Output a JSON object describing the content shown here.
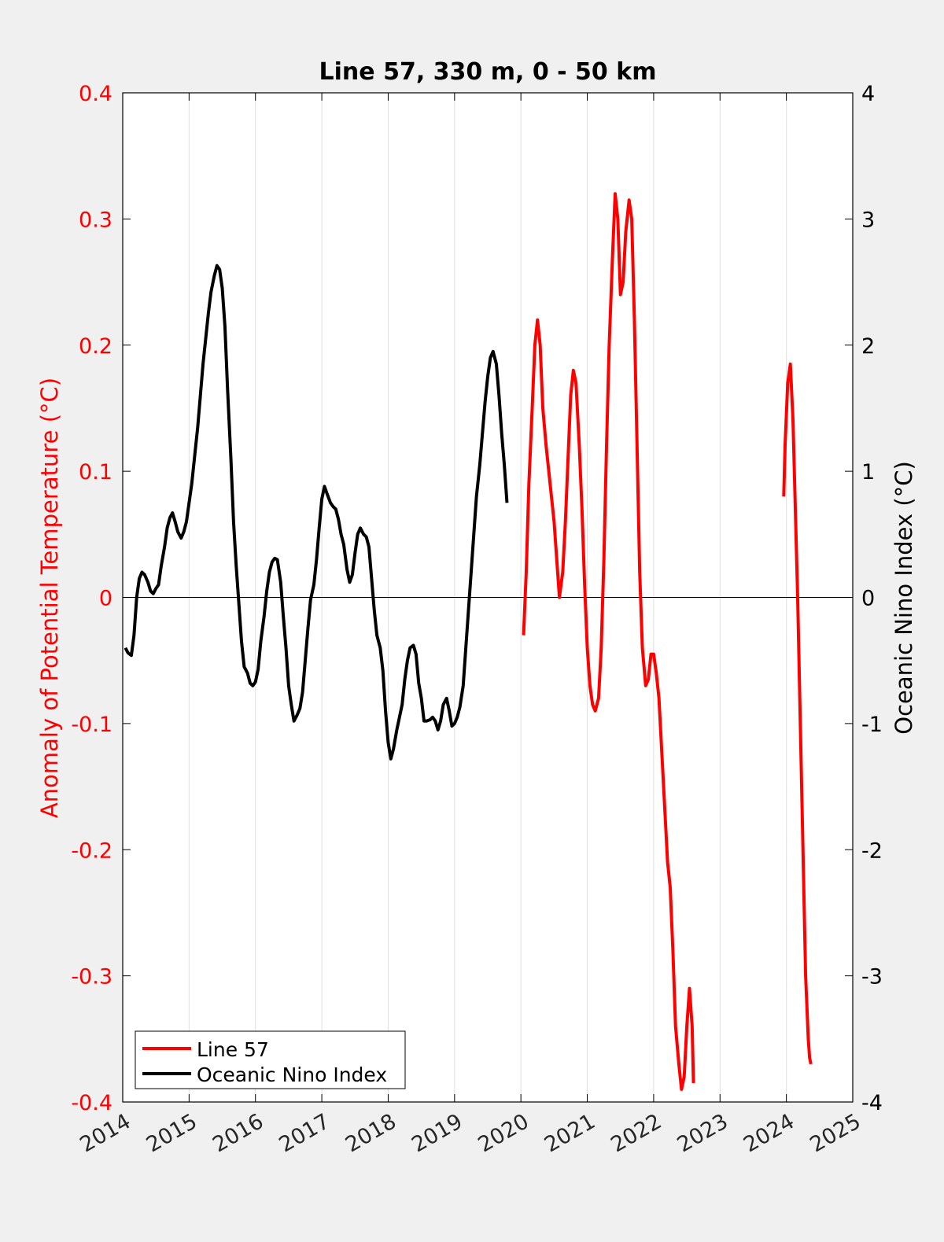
{
  "chart_data": {
    "type": "line",
    "title": "Line 57, 330 m, 0 - 50 km",
    "xlabel": "",
    "ylabel_left": "Anomaly of Potential Temperature (°C)",
    "ylabel_right": "Oceanic Nino Index (°C)",
    "xlim": [
      2014,
      2025
    ],
    "ylim_left": [
      -0.4,
      0.4
    ],
    "ylim_right": [
      -4,
      4
    ],
    "x_ticks": [
      "2014",
      "2015",
      "2016",
      "2017",
      "2018",
      "2019",
      "2020",
      "2021",
      "2022",
      "2023",
      "2024",
      "2025"
    ],
    "y_ticks_left": [
      "-0.4",
      "-0.3",
      "-0.2",
      "-0.1",
      "0",
      "0.1",
      "0.2",
      "0.3",
      "0.4"
    ],
    "y_ticks_right": [
      "-4",
      "-3",
      "-2",
      "-1",
      "0",
      "1",
      "2",
      "3",
      "4"
    ],
    "grid": "vertical",
    "zero_line": true,
    "legend_position": "bottom-left",
    "colors": {
      "left_axis": "#ff0000",
      "right_axis": "#000000",
      "line57": "#ff0000",
      "oni": "#000000",
      "plot_bg": "#ffffff",
      "figure_bg": "#f0f0f0",
      "grid": "#dfdfdf"
    },
    "series": [
      {
        "name": "Line 57",
        "axis": "left",
        "segments": [
          [
            [
              2020.04,
              -0.03
            ],
            [
              2020.08,
              0.02
            ],
            [
              2020.12,
              0.09
            ],
            [
              2020.17,
              0.15
            ],
            [
              2020.21,
              0.2
            ],
            [
              2020.25,
              0.22
            ],
            [
              2020.29,
              0.2
            ],
            [
              2020.33,
              0.15
            ],
            [
              2020.38,
              0.12
            ],
            [
              2020.42,
              0.1
            ],
            [
              2020.46,
              0.08
            ],
            [
              2020.5,
              0.06
            ],
            [
              2020.54,
              0.03
            ],
            [
              2020.58,
              0.0
            ],
            [
              2020.63,
              0.02
            ],
            [
              2020.67,
              0.06
            ],
            [
              2020.71,
              0.11
            ],
            [
              2020.75,
              0.16
            ],
            [
              2020.79,
              0.18
            ],
            [
              2020.83,
              0.17
            ],
            [
              2020.88,
              0.12
            ],
            [
              2020.92,
              0.07
            ],
            [
              2020.96,
              0.01
            ],
            [
              2021.0,
              -0.04
            ],
            [
              2021.04,
              -0.07
            ],
            [
              2021.08,
              -0.085
            ],
            [
              2021.12,
              -0.09
            ],
            [
              2021.17,
              -0.08
            ],
            [
              2021.21,
              -0.04
            ],
            [
              2021.25,
              0.03
            ],
            [
              2021.29,
              0.12
            ],
            [
              2021.33,
              0.2
            ],
            [
              2021.38,
              0.27
            ],
            [
              2021.42,
              0.32
            ],
            [
              2021.46,
              0.3
            ],
            [
              2021.5,
              0.24
            ],
            [
              2021.54,
              0.25
            ],
            [
              2021.58,
              0.29
            ],
            [
              2021.63,
              0.315
            ],
            [
              2021.67,
              0.3
            ],
            [
              2021.71,
              0.22
            ],
            [
              2021.75,
              0.12
            ],
            [
              2021.79,
              0.02
            ],
            [
              2021.83,
              -0.04
            ],
            [
              2021.88,
              -0.07
            ],
            [
              2021.92,
              -0.065
            ],
            [
              2021.96,
              -0.045
            ],
            [
              2022.0,
              -0.045
            ],
            [
              2022.04,
              -0.06
            ],
            [
              2022.08,
              -0.08
            ],
            [
              2022.12,
              -0.12
            ],
            [
              2022.17,
              -0.17
            ],
            [
              2022.21,
              -0.21
            ],
            [
              2022.25,
              -0.23
            ],
            [
              2022.29,
              -0.28
            ],
            [
              2022.33,
              -0.34
            ],
            [
              2022.38,
              -0.37
            ],
            [
              2022.42,
              -0.39
            ],
            [
              2022.46,
              -0.38
            ],
            [
              2022.5,
              -0.34
            ],
            [
              2022.54,
              -0.31
            ],
            [
              2022.58,
              -0.34
            ],
            [
              2022.6,
              -0.385
            ]
          ],
          [
            [
              2023.96,
              0.08
            ],
            [
              2023.98,
              0.12
            ],
            [
              2024.02,
              0.17
            ],
            [
              2024.06,
              0.185
            ],
            [
              2024.1,
              0.14
            ],
            [
              2024.13,
              0.08
            ],
            [
              2024.17,
              0.0
            ],
            [
              2024.21,
              -0.1
            ],
            [
              2024.25,
              -0.2
            ],
            [
              2024.29,
              -0.3
            ],
            [
              2024.33,
              -0.35
            ],
            [
              2024.35,
              -0.365
            ],
            [
              2024.37,
              -0.37
            ]
          ]
        ]
      },
      {
        "name": "Oceanic Nino Index",
        "axis": "right",
        "segments": [
          [
            [
              2014.04,
              -0.4
            ],
            [
              2014.08,
              -0.44
            ],
            [
              2014.13,
              -0.46
            ],
            [
              2014.17,
              -0.3
            ],
            [
              2014.21,
              0.0
            ],
            [
              2014.25,
              0.15
            ],
            [
              2014.29,
              0.2
            ],
            [
              2014.33,
              0.18
            ],
            [
              2014.38,
              0.12
            ],
            [
              2014.42,
              0.05
            ],
            [
              2014.46,
              0.03
            ],
            [
              2014.5,
              0.07
            ],
            [
              2014.54,
              0.1
            ],
            [
              2014.58,
              0.25
            ],
            [
              2014.63,
              0.4
            ],
            [
              2014.67,
              0.55
            ],
            [
              2014.71,
              0.63
            ],
            [
              2014.75,
              0.67
            ],
            [
              2014.79,
              0.6
            ],
            [
              2014.83,
              0.52
            ],
            [
              2014.88,
              0.47
            ],
            [
              2014.92,
              0.52
            ],
            [
              2014.96,
              0.6
            ],
            [
              2015.0,
              0.75
            ],
            [
              2015.04,
              0.9
            ],
            [
              2015.08,
              1.1
            ],
            [
              2015.13,
              1.35
            ],
            [
              2015.17,
              1.6
            ],
            [
              2015.21,
              1.85
            ],
            [
              2015.25,
              2.05
            ],
            [
              2015.29,
              2.25
            ],
            [
              2015.33,
              2.42
            ],
            [
              2015.38,
              2.55
            ],
            [
              2015.42,
              2.63
            ],
            [
              2015.46,
              2.6
            ],
            [
              2015.5,
              2.45
            ],
            [
              2015.54,
              2.15
            ],
            [
              2015.58,
              1.65
            ],
            [
              2015.63,
              1.1
            ],
            [
              2015.67,
              0.6
            ],
            [
              2015.71,
              0.25
            ],
            [
              2015.75,
              -0.05
            ],
            [
              2015.79,
              -0.35
            ],
            [
              2015.83,
              -0.55
            ],
            [
              2015.88,
              -0.6
            ],
            [
              2015.92,
              -0.68
            ],
            [
              2015.96,
              -0.7
            ],
            [
              2016.0,
              -0.67
            ],
            [
              2016.04,
              -0.57
            ],
            [
              2016.08,
              -0.35
            ],
            [
              2016.13,
              -0.15
            ],
            [
              2016.17,
              0.05
            ],
            [
              2016.21,
              0.2
            ],
            [
              2016.25,
              0.28
            ],
            [
              2016.29,
              0.31
            ],
            [
              2016.33,
              0.3
            ],
            [
              2016.38,
              0.12
            ],
            [
              2016.42,
              -0.15
            ],
            [
              2016.46,
              -0.4
            ],
            [
              2016.5,
              -0.7
            ],
            [
              2016.54,
              -0.85
            ],
            [
              2016.58,
              -0.98
            ],
            [
              2016.63,
              -0.93
            ],
            [
              2016.67,
              -0.88
            ],
            [
              2016.71,
              -0.75
            ],
            [
              2016.75,
              -0.5
            ],
            [
              2016.79,
              -0.25
            ],
            [
              2016.83,
              -0.02
            ],
            [
              2016.88,
              0.1
            ],
            [
              2016.92,
              0.3
            ],
            [
              2016.96,
              0.55
            ],
            [
              2017.0,
              0.78
            ],
            [
              2017.04,
              0.88
            ],
            [
              2017.08,
              0.82
            ],
            [
              2017.13,
              0.75
            ],
            [
              2017.17,
              0.72
            ],
            [
              2017.21,
              0.7
            ],
            [
              2017.25,
              0.62
            ],
            [
              2017.29,
              0.5
            ],
            [
              2017.33,
              0.42
            ],
            [
              2017.38,
              0.22
            ],
            [
              2017.42,
              0.12
            ],
            [
              2017.46,
              0.18
            ],
            [
              2017.5,
              0.35
            ],
            [
              2017.54,
              0.5
            ],
            [
              2017.58,
              0.55
            ],
            [
              2017.63,
              0.5
            ],
            [
              2017.67,
              0.48
            ],
            [
              2017.71,
              0.4
            ],
            [
              2017.75,
              0.15
            ],
            [
              2017.79,
              -0.1
            ],
            [
              2017.83,
              -0.3
            ],
            [
              2017.88,
              -0.4
            ],
            [
              2017.92,
              -0.58
            ],
            [
              2017.96,
              -0.9
            ],
            [
              2018.0,
              -1.15
            ],
            [
              2018.04,
              -1.28
            ],
            [
              2018.08,
              -1.2
            ],
            [
              2018.13,
              -1.05
            ],
            [
              2018.17,
              -0.95
            ],
            [
              2018.21,
              -0.85
            ],
            [
              2018.25,
              -0.65
            ],
            [
              2018.29,
              -0.5
            ],
            [
              2018.33,
              -0.4
            ],
            [
              2018.38,
              -0.38
            ],
            [
              2018.42,
              -0.45
            ],
            [
              2018.46,
              -0.68
            ],
            [
              2018.5,
              -0.8
            ],
            [
              2018.54,
              -0.98
            ],
            [
              2018.58,
              -0.98
            ],
            [
              2018.63,
              -0.97
            ],
            [
              2018.67,
              -0.95
            ],
            [
              2018.71,
              -0.98
            ],
            [
              2018.75,
              -1.05
            ],
            [
              2018.79,
              -0.98
            ],
            [
              2018.83,
              -0.85
            ],
            [
              2018.88,
              -0.8
            ],
            [
              2018.92,
              -0.9
            ],
            [
              2018.96,
              -1.02
            ],
            [
              2019.0,
              -1.0
            ],
            [
              2019.04,
              -0.95
            ],
            [
              2019.08,
              -0.87
            ],
            [
              2019.13,
              -0.7
            ],
            [
              2019.17,
              -0.4
            ],
            [
              2019.21,
              -0.1
            ],
            [
              2019.25,
              0.2
            ],
            [
              2019.29,
              0.5
            ],
            [
              2019.33,
              0.8
            ],
            [
              2019.38,
              1.05
            ],
            [
              2019.42,
              1.3
            ],
            [
              2019.46,
              1.55
            ],
            [
              2019.5,
              1.75
            ],
            [
              2019.54,
              1.9
            ],
            [
              2019.58,
              1.95
            ],
            [
              2019.63,
              1.85
            ],
            [
              2019.67,
              1.6
            ],
            [
              2019.71,
              1.3
            ],
            [
              2019.75,
              1.05
            ],
            [
              2019.79,
              0.75
            ]
          ]
        ]
      }
    ]
  }
}
